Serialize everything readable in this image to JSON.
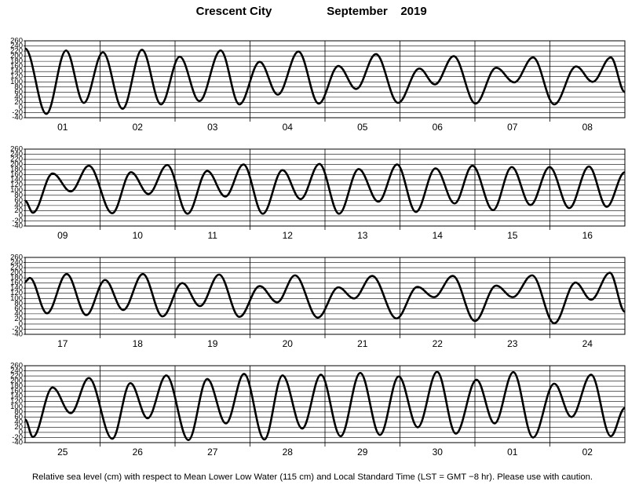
{
  "header": {
    "station": "Crescent City",
    "month": "September",
    "year": "2019"
  },
  "chart_data": [
    {
      "type": "line",
      "day_labels": [
        "01",
        "02",
        "03",
        "04",
        "05",
        "06",
        "07",
        "08"
      ],
      "xlim": [
        0,
        192
      ],
      "ylim": [
        -40,
        260
      ],
      "yticks": [
        -40,
        -20,
        0,
        20,
        40,
        60,
        80,
        100,
        120,
        140,
        160,
        180,
        200,
        220,
        240,
        260
      ],
      "grid": true,
      "color": "#000000",
      "x": [
        0,
        6.8,
        13.1,
        18.8,
        24.9,
        31.2,
        37.4,
        43.5,
        49.5,
        55.8,
        62.6,
        68.6,
        75.1,
        80.9,
        87.5,
        94.0,
        100.3,
        106.0,
        112.3,
        119.4,
        126.2,
        131.2,
        137.2,
        144.2,
        150.8,
        156.6,
        162.6,
        169.4,
        176.4,
        181.7,
        187.5,
        192
      ],
      "values": [
        230,
        -25,
        222,
        18,
        215,
        -5,
        225,
        12,
        198,
        25,
        222,
        12,
        178,
        50,
        218,
        15,
        162,
        72,
        208,
        18,
        152,
        90,
        200,
        15,
        155,
        98,
        195,
        12,
        160,
        100,
        195,
        60
      ]
    },
    {
      "type": "line",
      "day_labels": [
        "09",
        "10",
        "11",
        "12",
        "13",
        "14",
        "15",
        "16"
      ],
      "xlim": [
        0,
        192
      ],
      "ylim": [
        -40,
        260
      ],
      "yticks": [
        -40,
        -20,
        0,
        20,
        40,
        60,
        80,
        100,
        120,
        140,
        160,
        180,
        200,
        220,
        240,
        260
      ],
      "grid": true,
      "color": "#000000",
      "x": [
        0,
        2.5,
        8.8,
        14.6,
        20.4,
        27.9,
        33.9,
        39.5,
        45.5,
        52.0,
        58.3,
        64.1,
        69.9,
        76.1,
        82.4,
        88.2,
        94.2,
        100.5,
        106.8,
        113.1,
        119.1,
        125.1,
        131.4,
        137.5,
        143.2,
        149.8,
        155.8,
        161.8,
        167.9,
        174.2,
        180.5,
        186.2,
        192
      ],
      "values": [
        58,
        12,
        165,
        95,
        195,
        10,
        170,
        85,
        198,
        8,
        175,
        75,
        200,
        8,
        178,
        65,
        202,
        8,
        182,
        55,
        200,
        15,
        185,
        48,
        195,
        22,
        190,
        42,
        190,
        30,
        192,
        35,
        170
      ]
    },
    {
      "type": "line",
      "day_labels": [
        "17",
        "18",
        "19",
        "20",
        "21",
        "22",
        "23",
        "24"
      ],
      "xlim": [
        0,
        192
      ],
      "ylim": [
        -40,
        260
      ],
      "yticks": [
        -40,
        -20,
        0,
        20,
        40,
        60,
        80,
        100,
        120,
        140,
        160,
        180,
        200,
        220,
        240,
        260
      ],
      "grid": true,
      "color": "#000000",
      "x": [
        0,
        1.5,
        7.0,
        13.3,
        19.6,
        25.6,
        31.4,
        37.7,
        44.0,
        50.3,
        56.0,
        62.1,
        68.6,
        75.1,
        80.7,
        86.4,
        93.7,
        100.3,
        105.3,
        111.1,
        118.9,
        125.6,
        130.9,
        136.9,
        144.0,
        150.8,
        156.1,
        162.3,
        169.4,
        176.2,
        181.2,
        187.2,
        192
      ],
      "values": [
        165,
        180,
        42,
        195,
        35,
        172,
        55,
        195,
        30,
        160,
        70,
        193,
        28,
        148,
        85,
        190,
        25,
        143,
        100,
        188,
        22,
        145,
        105,
        188,
        12,
        150,
        105,
        190,
        3,
        162,
        95,
        200,
        48
      ]
    },
    {
      "type": "line",
      "day_labels": [
        "25",
        "26",
        "27",
        "28",
        "29",
        "30",
        "01",
        "02"
      ],
      "xlim": [
        0,
        192
      ],
      "ylim": [
        -40,
        260
      ],
      "yticks": [
        -40,
        -20,
        0,
        20,
        40,
        60,
        80,
        100,
        120,
        140,
        160,
        180,
        200,
        220,
        240,
        260
      ],
      "grid": true,
      "color": "#000000",
      "x": [
        0,
        2.5,
        8.8,
        14.6,
        20.4,
        27.9,
        33.7,
        39.2,
        45.2,
        52.3,
        58.3,
        64.3,
        70.1,
        76.6,
        82.4,
        88.7,
        94.7,
        101.0,
        107.3,
        113.6,
        119.6,
        125.7,
        131.9,
        137.9,
        144.5,
        150.3,
        156.3,
        162.6,
        169.4,
        174.9,
        181.2,
        187.5,
        192
      ],
      "values": [
        50,
        -18,
        175,
        75,
        212,
        -25,
        192,
        55,
        222,
        -30,
        208,
        35,
        228,
        -28,
        222,
        15,
        225,
        -15,
        232,
        -10,
        218,
        20,
        236,
        -5,
        205,
        35,
        235,
        -20,
        190,
        60,
        225,
        -15,
        95
      ]
    }
  ],
  "footer": "Relative sea level (cm) with respect to Mean Lower Low Water (115 cm) and Local Standard Time (LST = GMT −8 hr). Please use with caution."
}
